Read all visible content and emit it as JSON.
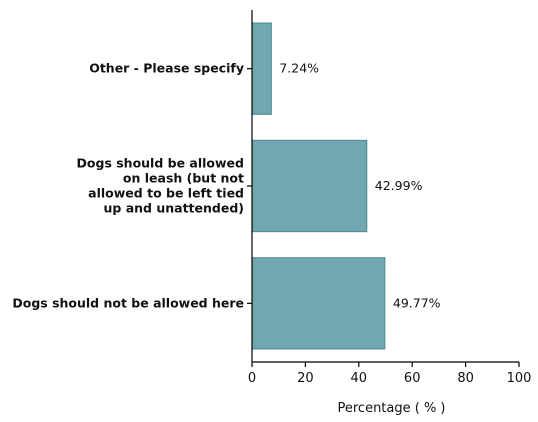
{
  "chart_data": {
    "type": "bar",
    "orientation": "horizontal",
    "categories": [
      [
        "Other - Please specify"
      ],
      [
        "Dogs should be allowed",
        "on leash (but not",
        "allowed to be left tied",
        "up and unattended)"
      ],
      [
        "Dogs should not be allowed here"
      ]
    ],
    "values": [
      7.24,
      42.99,
      49.77
    ],
    "value_labels": [
      "7.24%",
      "42.99%",
      "49.77%"
    ],
    "xlabel": "Percentage ( % )",
    "xlim": [
      0,
      100
    ],
    "xticks": [
      "0",
      "20",
      "40",
      "60",
      "80",
      "100"
    ],
    "bar_color": "#6fa8b0",
    "bar_stroke": "#4f8890",
    "grid": false,
    "legend": "none"
  }
}
